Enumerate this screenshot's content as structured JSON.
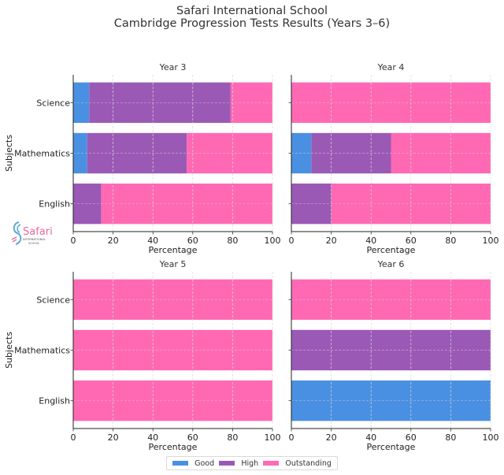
{
  "chart_data": {
    "type": "bar",
    "orientation": "horizontal-stacked",
    "title": "Safari International School",
    "subtitle": "Cambridge Progression Tests Results (Years 3–6)",
    "legend": {
      "entries": [
        "Good",
        "High",
        "Outstanding"
      ],
      "placement": "bottom-center"
    },
    "colors": {
      "Good": "#4A90E2",
      "High": "#9B59B6",
      "Outstanding": "#FF69B4"
    },
    "xlabel": "Percentage",
    "ylabel": "Subjects",
    "xlim": [
      0,
      100
    ],
    "xticks": [
      "0",
      "20",
      "40",
      "60",
      "80",
      "100"
    ],
    "categories": [
      "Science",
      "Mathematics",
      "English"
    ],
    "grid": true,
    "panels": [
      {
        "title": "Year 3",
        "series": [
          {
            "name": "Good",
            "values": [
              8,
              7,
              0
            ]
          },
          {
            "name": "High",
            "values": [
              71,
              50,
              14
            ]
          },
          {
            "name": "Outstanding",
            "values": [
              21,
              43,
              86
            ]
          }
        ]
      },
      {
        "title": "Year 4",
        "series": [
          {
            "name": "Good",
            "values": [
              0,
              10,
              0
            ]
          },
          {
            "name": "High",
            "values": [
              0,
              40,
              20
            ]
          },
          {
            "name": "Outstanding",
            "values": [
              100,
              50,
              80
            ]
          }
        ]
      },
      {
        "title": "Year 5",
        "series": [
          {
            "name": "Good",
            "values": [
              0,
              0,
              0
            ]
          },
          {
            "name": "High",
            "values": [
              0,
              0,
              0
            ]
          },
          {
            "name": "Outstanding",
            "values": [
              100,
              100,
              100
            ]
          }
        ]
      },
      {
        "title": "Year 6",
        "series": [
          {
            "name": "Good",
            "values": [
              0,
              0,
              100
            ]
          },
          {
            "name": "High",
            "values": [
              0,
              100,
              0
            ]
          },
          {
            "name": "Outstanding",
            "values": [
              100,
              0,
              0
            ]
          }
        ]
      }
    ]
  },
  "logo": {
    "name": "Safari",
    "tagline": "INTERNATIONAL",
    "tagline2": "SCHOOL"
  }
}
